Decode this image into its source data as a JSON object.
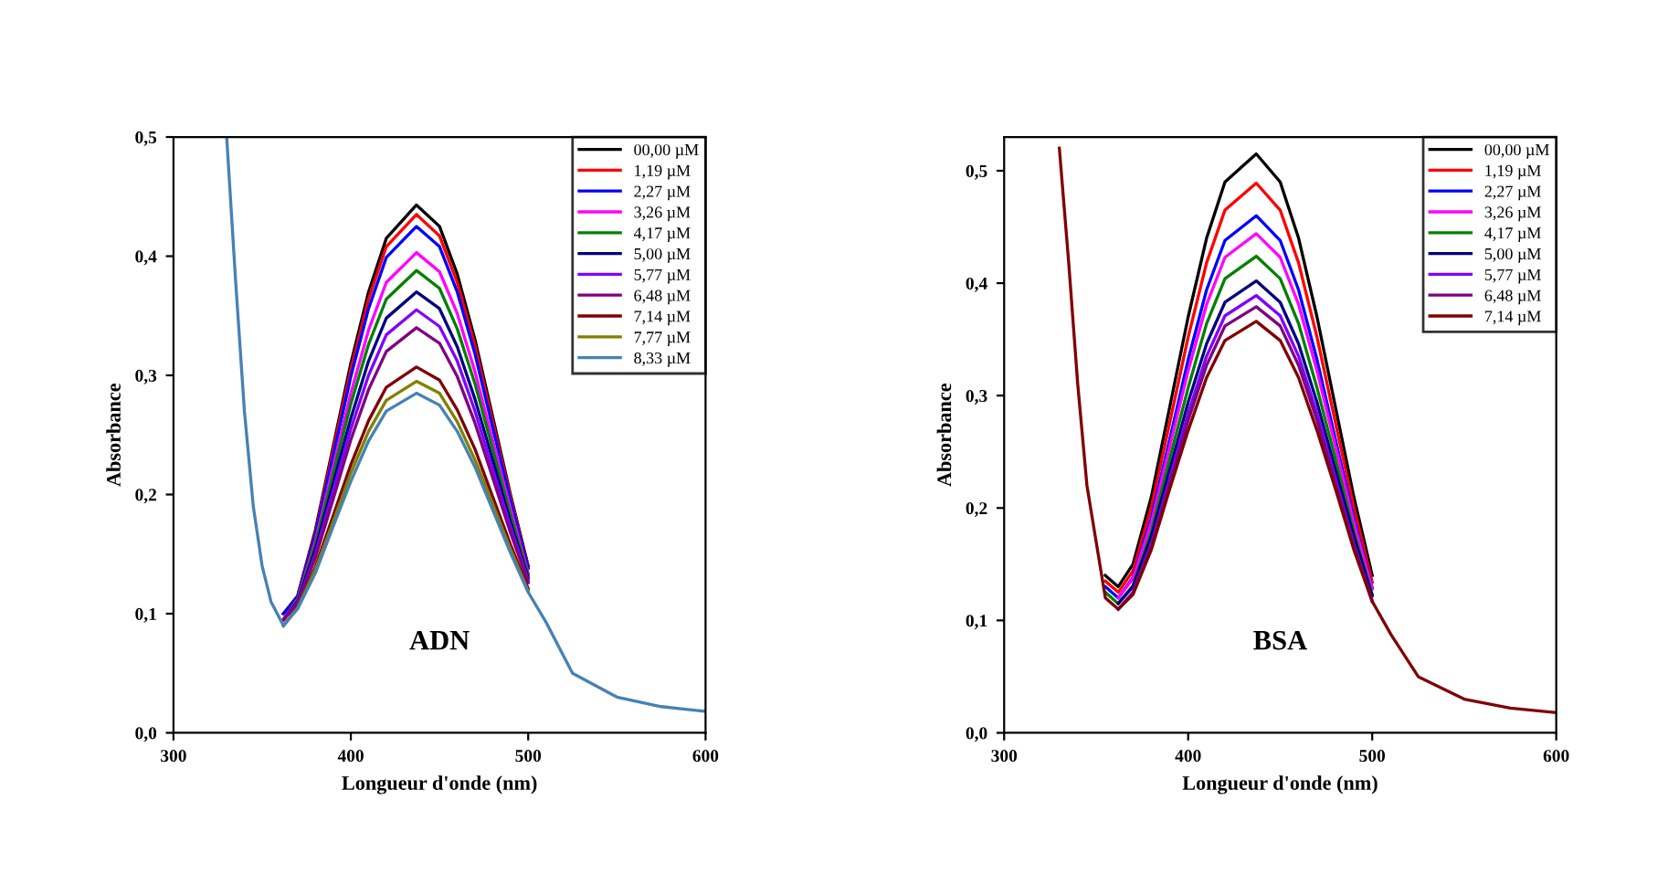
{
  "chart_data": [
    {
      "type": "line",
      "xlabel": "Longueur d'onde (nm)",
      "ylabel": "Absorbance",
      "annotations": [
        "ADN"
      ],
      "legend": "top right",
      "grid": false,
      "xlim": [
        300,
        600
      ],
      "xticks": [
        300,
        400,
        500,
        600
      ],
      "ylim": [
        0,
        0.5
      ],
      "yticks": [
        {
          "value": 0,
          "label": "0,0"
        },
        {
          "value": 0.1,
          "label": "0,1"
        },
        {
          "value": 0.2,
          "label": "0,2"
        },
        {
          "value": 0.3,
          "label": "0,3"
        },
        {
          "value": 0.4,
          "label": "0,4"
        },
        {
          "value": 0.5,
          "label": "0,5"
        }
      ],
      "x": [
        330,
        335,
        340,
        345,
        350,
        355,
        362,
        370,
        380,
        390,
        400,
        410,
        420,
        437,
        450,
        460,
        470,
        480,
        490,
        500,
        510,
        525,
        550,
        575,
        600
      ],
      "series": [
        {
          "name": "00,00 µM",
          "color": "#000000",
          "values": [
            null,
            null,
            null,
            null,
            null,
            null,
            0.1,
            0.115,
            0.17,
            0.24,
            0.31,
            0.37,
            0.415,
            0.443,
            0.425,
            0.385,
            0.33,
            0.265,
            0.2,
            0.14,
            null,
            null,
            null,
            null,
            null
          ]
        },
        {
          "name": "1,19 µM",
          "color": "#ff0000",
          "values": [
            null,
            null,
            null,
            null,
            null,
            null,
            0.1,
            0.114,
            0.168,
            0.237,
            0.305,
            0.364,
            0.408,
            0.435,
            0.417,
            0.378,
            0.325,
            0.261,
            0.198,
            0.139,
            null,
            null,
            null,
            null,
            null
          ]
        },
        {
          "name": "2,27 µM",
          "color": "#0000ff",
          "values": [
            null,
            null,
            null,
            null,
            null,
            null,
            0.1,
            0.114,
            0.166,
            0.232,
            0.299,
            0.356,
            0.399,
            0.425,
            0.408,
            0.37,
            0.318,
            0.256,
            0.195,
            0.138,
            null,
            null,
            null,
            null,
            null
          ]
        },
        {
          "name": "3,26 µM",
          "color": "#ff00ff",
          "values": [
            null,
            null,
            null,
            null,
            null,
            null,
            0.095,
            0.112,
            0.161,
            0.223,
            0.285,
            0.338,
            0.378,
            0.403,
            0.387,
            0.352,
            0.303,
            0.245,
            0.188,
            0.134,
            null,
            null,
            null,
            null,
            null
          ]
        },
        {
          "name": "4,17 µM",
          "color": "#008000",
          "values": [
            null,
            null,
            null,
            null,
            null,
            null,
            0.095,
            0.111,
            0.158,
            0.217,
            0.276,
            0.326,
            0.364,
            0.388,
            0.373,
            0.339,
            0.293,
            0.238,
            0.183,
            0.132,
            null,
            null,
            null,
            null,
            null
          ]
        },
        {
          "name": "5,00 µM",
          "color": "#000080",
          "values": [
            null,
            null,
            null,
            null,
            null,
            null,
            0.095,
            0.11,
            0.154,
            0.209,
            0.264,
            0.312,
            0.348,
            0.37,
            0.356,
            0.324,
            0.28,
            0.229,
            0.177,
            0.13,
            null,
            null,
            null,
            null,
            null
          ]
        },
        {
          "name": "5,77 µM",
          "color": "#8000ff",
          "values": [
            null,
            null,
            null,
            null,
            null,
            null,
            0.095,
            0.109,
            0.15,
            0.203,
            0.255,
            0.3,
            0.334,
            0.355,
            0.341,
            0.312,
            0.27,
            0.221,
            0.173,
            0.128,
            null,
            null,
            null,
            null,
            null
          ]
        },
        {
          "name": "6,48 µM",
          "color": "#800080",
          "values": [
            null,
            null,
            null,
            null,
            null,
            null,
            0.095,
            0.108,
            0.147,
            0.196,
            0.246,
            0.288,
            0.32,
            0.34,
            0.327,
            0.299,
            0.26,
            0.214,
            0.168,
            0.126,
            null,
            null,
            null,
            null,
            null
          ]
        },
        {
          "name": "7,14 µM",
          "color": "#800000",
          "values": [
            null,
            null,
            null,
            null,
            null,
            null,
            0.09,
            0.105,
            0.139,
            0.182,
            0.225,
            0.262,
            0.29,
            0.307,
            0.296,
            0.271,
            0.238,
            0.198,
            0.158,
            0.121,
            null,
            null,
            null,
            null,
            null
          ]
        },
        {
          "name": "7,77 µM",
          "color": "#808000",
          "values": [
            null,
            null,
            null,
            null,
            null,
            null,
            0.09,
            0.105,
            0.137,
            0.177,
            0.218,
            0.253,
            0.279,
            0.295,
            0.285,
            0.261,
            0.229,
            0.192,
            0.154,
            0.119,
            null,
            null,
            null,
            null,
            null
          ]
        },
        {
          "name": "8,33 µM",
          "color": "#4682b4",
          "values": [
            0.5,
            0.38,
            0.27,
            0.19,
            0.14,
            0.11,
            0.09,
            0.104,
            0.134,
            0.173,
            0.211,
            0.245,
            0.27,
            0.285,
            0.275,
            0.253,
            0.223,
            0.187,
            0.151,
            0.118,
            0.093,
            0.05,
            0.03,
            0.022,
            0.018
          ]
        }
      ]
    },
    {
      "type": "line",
      "xlabel": "Longueur d'onde (nm)",
      "ylabel": "Absorbance",
      "annotations": [
        "BSA"
      ],
      "legend": "top right",
      "grid": false,
      "xlim": [
        300,
        600
      ],
      "xticks": [
        300,
        400,
        500,
        600
      ],
      "ylim": [
        0,
        0.53
      ],
      "yticks": [
        {
          "value": 0,
          "label": "0,0"
        },
        {
          "value": 0.1,
          "label": "0,1"
        },
        {
          "value": 0.2,
          "label": "0,2"
        },
        {
          "value": 0.3,
          "label": "0,3"
        },
        {
          "value": 0.4,
          "label": "0,4"
        },
        {
          "value": 0.5,
          "label": "0,5"
        }
      ],
      "x": [
        330,
        335,
        340,
        345,
        350,
        355,
        362,
        370,
        380,
        390,
        400,
        410,
        420,
        437,
        450,
        460,
        470,
        480,
        490,
        500,
        510,
        525,
        550,
        575,
        600
      ],
      "series": [
        {
          "name": "00,00 µM",
          "color": "#000000",
          "values": [
            null,
            null,
            null,
            null,
            null,
            0.14,
            0.13,
            0.15,
            0.21,
            0.29,
            0.37,
            0.44,
            0.49,
            0.515,
            0.49,
            0.44,
            0.37,
            0.29,
            0.21,
            0.14,
            null,
            null,
            null,
            null,
            null
          ]
        },
        {
          "name": "1,19 µM",
          "color": "#ff0000",
          "values": [
            null,
            null,
            null,
            null,
            null,
            0.135,
            0.125,
            0.144,
            0.201,
            0.276,
            0.352,
            0.418,
            0.465,
            0.489,
            0.465,
            0.418,
            0.352,
            0.276,
            0.201,
            0.134,
            null,
            null,
            null,
            null,
            null
          ]
        },
        {
          "name": "2,27 µM",
          "color": "#0000ff",
          "values": [
            null,
            null,
            null,
            null,
            null,
            0.13,
            0.12,
            0.138,
            0.191,
            0.261,
            0.332,
            0.394,
            0.438,
            0.46,
            0.438,
            0.394,
            0.332,
            0.261,
            0.191,
            0.129,
            null,
            null,
            null,
            null,
            null
          ]
        },
        {
          "name": "3,26 µM",
          "color": "#ff00ff",
          "values": [
            null,
            null,
            null,
            null,
            null,
            null,
            0.12,
            0.137,
            0.187,
            0.255,
            0.322,
            0.381,
            0.423,
            0.444,
            0.423,
            0.381,
            0.322,
            0.255,
            0.187,
            0.128,
            null,
            null,
            null,
            null,
            null
          ]
        },
        {
          "name": "4,17 µM",
          "color": "#008000",
          "values": [
            null,
            null,
            null,
            null,
            null,
            0.125,
            0.115,
            0.131,
            0.179,
            0.244,
            0.307,
            0.364,
            0.404,
            0.424,
            0.404,
            0.364,
            0.307,
            0.244,
            0.179,
            0.123,
            null,
            null,
            null,
            null,
            null
          ]
        },
        {
          "name": "5,00 µM",
          "color": "#000080",
          "values": [
            null,
            null,
            null,
            null,
            null,
            null,
            0.115,
            0.13,
            0.175,
            0.234,
            0.294,
            0.346,
            0.383,
            0.402,
            0.383,
            0.346,
            0.294,
            0.234,
            0.175,
            0.122,
            null,
            null,
            null,
            null,
            null
          ]
        },
        {
          "name": "5,77 µM",
          "color": "#8000ff",
          "values": [
            null,
            null,
            null,
            null,
            null,
            null,
            0.11,
            0.125,
            0.168,
            0.226,
            0.284,
            0.335,
            0.371,
            0.389,
            0.371,
            0.335,
            0.284,
            0.226,
            0.168,
            0.117,
            null,
            null,
            null,
            null,
            null
          ]
        },
        {
          "name": "6,48 µM",
          "color": "#800080",
          "values": [
            null,
            null,
            null,
            null,
            null,
            null,
            0.11,
            0.124,
            0.166,
            0.222,
            0.278,
            0.327,
            0.362,
            0.379,
            0.362,
            0.327,
            0.278,
            0.222,
            0.166,
            0.117,
            null,
            null,
            null,
            null,
            null
          ]
        },
        {
          "name": "7,14 µM",
          "color": "#800000",
          "values": [
            0.52,
            0.42,
            0.31,
            0.22,
            0.17,
            0.12,
            0.11,
            0.123,
            0.163,
            0.217,
            0.269,
            0.316,
            0.349,
            0.366,
            0.349,
            0.316,
            0.269,
            0.217,
            0.163,
            0.117,
            0.088,
            0.05,
            0.03,
            0.022,
            0.018
          ]
        }
      ]
    }
  ]
}
